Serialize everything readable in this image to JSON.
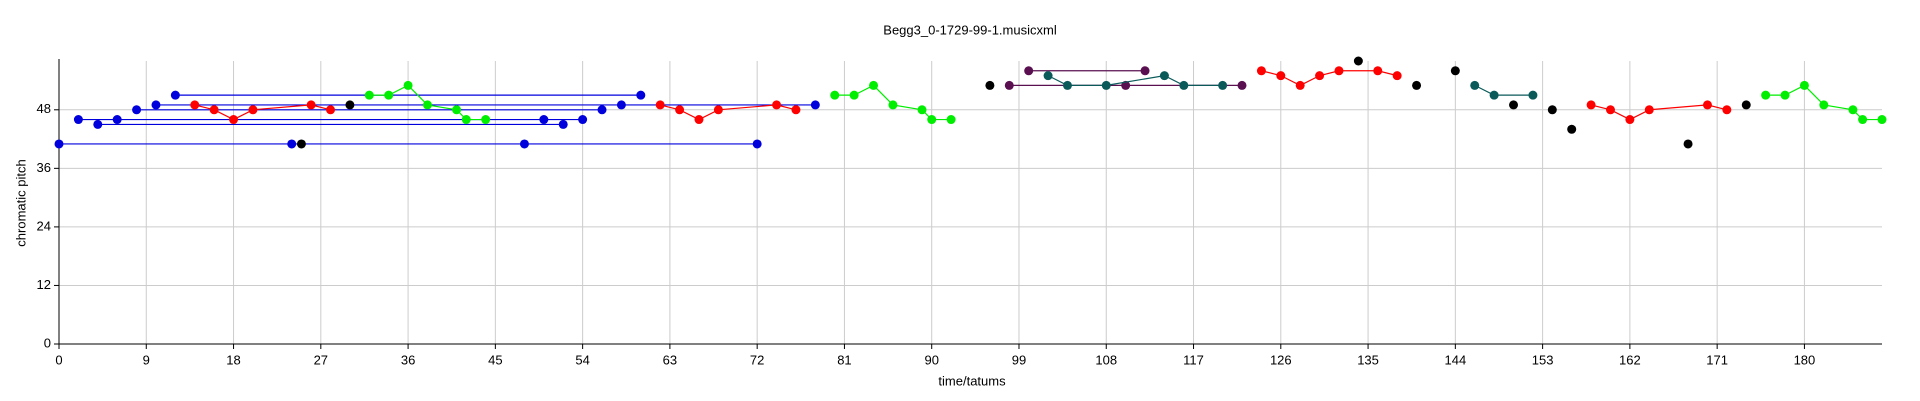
{
  "chart_data": {
    "type": "scatter",
    "title": "Begg3_0-1729-99-1.musicxml",
    "x_label": "time/tatums",
    "y_label": "chromatic pitch",
    "xlim": [
      0,
      188
    ],
    "ylim": [
      0,
      58
    ],
    "xticks": [
      0,
      9,
      18,
      27,
      36,
      45,
      54,
      63,
      72,
      81,
      90,
      99,
      108,
      117,
      126,
      135,
      144,
      153,
      162,
      171,
      180
    ],
    "yticks": [
      0,
      12,
      24,
      36,
      48
    ],
    "grid": true,
    "series": [
      {
        "color": "#0000dd",
        "lines": true,
        "x": [
          0,
          24,
          48,
          72,
          null,
          2,
          54,
          null,
          4,
          52,
          null,
          6,
          50,
          null,
          8,
          56,
          null,
          10,
          58,
          78,
          null,
          12,
          60
        ],
        "values": [
          41,
          41,
          41,
          41,
          null,
          46,
          46,
          null,
          45,
          45,
          null,
          46,
          46,
          null,
          48,
          48,
          null,
          49,
          49,
          49,
          null,
          51,
          51
        ]
      },
      {
        "color": "#ff0000",
        "lines": true,
        "x": [
          14,
          16,
          18,
          20,
          26,
          28,
          null,
          62,
          64,
          66,
          68,
          74,
          76,
          null,
          124,
          126,
          128,
          130,
          132,
          136,
          138,
          null,
          158,
          160,
          162,
          164,
          170,
          172
        ],
        "values": [
          49,
          48,
          46,
          48,
          49,
          48,
          null,
          49,
          48,
          46,
          48,
          49,
          48,
          null,
          56,
          55,
          53,
          55,
          56,
          56,
          55,
          null,
          49,
          48,
          46,
          48,
          49,
          48
        ]
      },
      {
        "color": "#00ee00",
        "lines": true,
        "x": [
          32,
          34,
          36,
          38,
          41,
          42,
          44,
          null,
          80,
          82,
          84,
          86,
          89,
          90,
          92,
          null,
          176,
          178,
          180,
          182,
          185,
          186,
          188
        ],
        "values": [
          51,
          51,
          53,
          49,
          48,
          46,
          46,
          null,
          51,
          51,
          53,
          49,
          48,
          46,
          46,
          null,
          51,
          51,
          53,
          49,
          48,
          46,
          46
        ]
      },
      {
        "color": "#5a1050",
        "lines": true,
        "x": [
          100,
          112,
          null,
          98,
          110,
          122
        ],
        "values": [
          56,
          56,
          null,
          53,
          53,
          53
        ]
      },
      {
        "color": "#0b5a5a",
        "lines": true,
        "x": [
          102,
          104,
          108,
          114,
          116,
          120,
          null,
          146,
          148,
          152
        ],
        "values": [
          55,
          53,
          53,
          55,
          53,
          53,
          null,
          53,
          51,
          51
        ]
      },
      {
        "color": "#000000",
        "lines": false,
        "x": [
          25,
          30,
          96,
          134,
          140,
          144,
          150,
          154,
          156,
          168,
          174
        ],
        "values": [
          41,
          49,
          53,
          58,
          53,
          56,
          49,
          48,
          44,
          41,
          49
        ]
      }
    ]
  }
}
